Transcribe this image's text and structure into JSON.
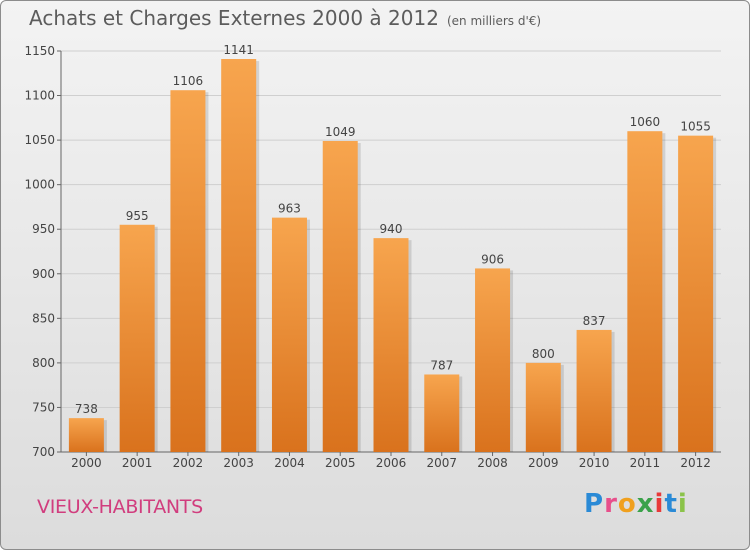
{
  "title": "Achats et Charges Externes 2000 à 2012",
  "unit": "(en milliers d'€)",
  "town": "VIEUX-HABITANTS",
  "logo": [
    "P",
    "r",
    "o",
    "x",
    "i",
    "t",
    "i"
  ],
  "colors": {
    "bar_light": "#f7a54e",
    "bar_dark": "#d9721d",
    "title": "#5c5c5c",
    "town": "#d13d7e"
  },
  "chart_data": {
    "type": "bar",
    "title": "Achats et Charges Externes 2000 à 2012",
    "ylabel": "(en milliers d'€)",
    "categories": [
      "2000",
      "2001",
      "2002",
      "2003",
      "2004",
      "2005",
      "2006",
      "2007",
      "2008",
      "2009",
      "2010",
      "2011",
      "2012"
    ],
    "values": [
      738,
      955,
      1106,
      1141,
      963,
      1049,
      940,
      787,
      906,
      800,
      837,
      1060,
      1055
    ],
    "ylim": [
      700,
      1150
    ],
    "yticks": [
      700,
      750,
      800,
      850,
      900,
      950,
      1000,
      1050,
      1100,
      1150
    ],
    "grid": true,
    "legend": "none"
  }
}
